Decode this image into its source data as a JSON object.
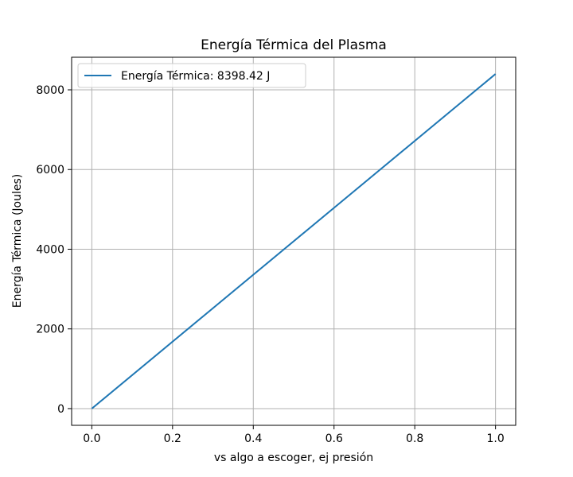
{
  "chart_data": {
    "type": "line",
    "title": "Energía Térmica del Plasma",
    "xlabel": "vs algo a escoger, ej presión",
    "ylabel": "Energía Térmica (Joules)",
    "x": [
      0.0,
      1.0
    ],
    "series": [
      {
        "name": "Energía Térmica: 8398.42 J",
        "values": [
          0,
          8398.42
        ],
        "color": "#1f77b4"
      }
    ],
    "xlim": [
      -0.05,
      1.05
    ],
    "ylim": [
      -419.92,
      8818.34
    ],
    "xticks": [
      0.0,
      0.2,
      0.4,
      0.6,
      0.8,
      1.0
    ],
    "xtick_labels": [
      "0.0",
      "0.2",
      "0.4",
      "0.6",
      "0.8",
      "1.0"
    ],
    "yticks": [
      0,
      2000,
      4000,
      6000,
      8000
    ],
    "ytick_labels": [
      "0",
      "2000",
      "4000",
      "6000",
      "8000"
    ],
    "grid": true,
    "legend_position": "top-left"
  }
}
